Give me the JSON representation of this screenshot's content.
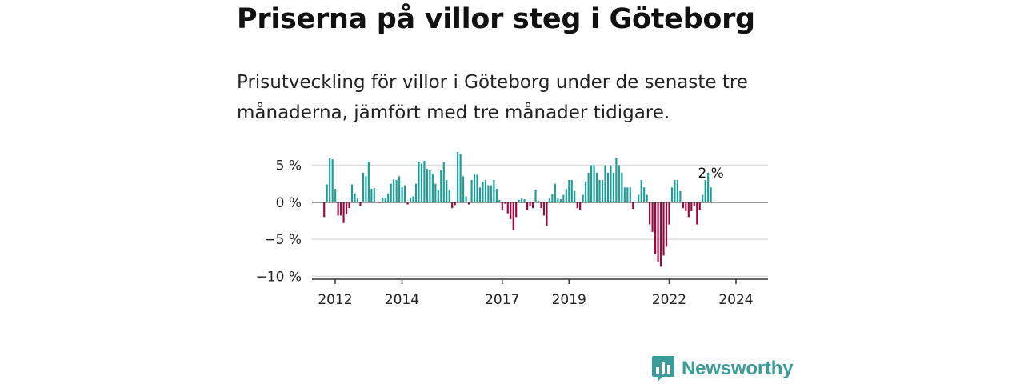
{
  "title": "Priserna på villor steg i Göteborg",
  "subtitle": "Prisutveckling för villor i Göteborg under de senaste tre månaderna, jämfört med tre månader tidigare.",
  "brand": {
    "name": "Newsworthy",
    "icon": "newsworthy-logo-icon"
  },
  "colors": {
    "positive": "#1a9e97",
    "negative": "#a3063d",
    "grid": "#dddddd",
    "axis": "#333333",
    "brand": "#3a9c99"
  },
  "chart_data": {
    "type": "bar",
    "title": "Priserna på villor steg i Göteborg",
    "ylabel": "",
    "xlabel": "",
    "ylim": [
      -10.5,
      7
    ],
    "yticks": [
      5,
      0,
      -5,
      -10
    ],
    "ytick_labels": [
      "5 %",
      "0 %",
      "−5 %",
      "−10 %"
    ],
    "x_start": 2011.67,
    "x_end": 2024.75,
    "x_step": 0.0833,
    "xticks": [
      2012,
      2014,
      2017,
      2019,
      2022,
      2024
    ],
    "xtick_labels": [
      "2012",
      "2014",
      "2017",
      "2019",
      "2022",
      "2024"
    ],
    "last_label": "2 %",
    "values": [
      -2,
      2.4,
      6,
      5.8,
      1.8,
      -1.8,
      -1.8,
      -2.8,
      -1.6,
      -0.8,
      2.4,
      1.2,
      0.5,
      -0.5,
      4,
      3.5,
      5.5,
      1.8,
      1.9,
      0,
      -0.1,
      0.6,
      0.5,
      1.2,
      2.5,
      3.1,
      3,
      3.5,
      2,
      2.3,
      -0.3,
      0.6,
      0.8,
      2.5,
      5.5,
      5.2,
      5.6,
      4.5,
      4.3,
      3.8,
      2.5,
      1.7,
      4.3,
      5.4,
      3,
      1.7,
      -0.8,
      -0.4,
      6.8,
      6.5,
      3.5,
      0.8,
      -0.3,
      3,
      3.8,
      3.7,
      2,
      2.8,
      3,
      2.3,
      2.3,
      3,
      1.8,
      0.3,
      -1,
      -0.2,
      -1.5,
      -2.3,
      -3.8,
      -2,
      0.3,
      0.5,
      0.4,
      -1,
      -0.5,
      -0.8,
      1.7,
      0.2,
      -0.8,
      -1.8,
      -3.2,
      0.5,
      1.1,
      2.5,
      0.5,
      0.4,
      1,
      1.8,
      3,
      3,
      1.5,
      -0.8,
      -1,
      1,
      2.8,
      4,
      5,
      5,
      4,
      3,
      3,
      5,
      4,
      5,
      4,
      6,
      5,
      4,
      2,
      2,
      2,
      -0.9,
      0,
      1,
      3,
      2,
      1,
      -3,
      -4,
      -7,
      -8,
      -8.7,
      -7.2,
      -6,
      -3,
      2,
      3,
      3,
      1.5,
      -0.8,
      -1.2,
      -2,
      -1.2,
      -0.5,
      -3,
      -1,
      1,
      3,
      4,
      2
    ]
  }
}
